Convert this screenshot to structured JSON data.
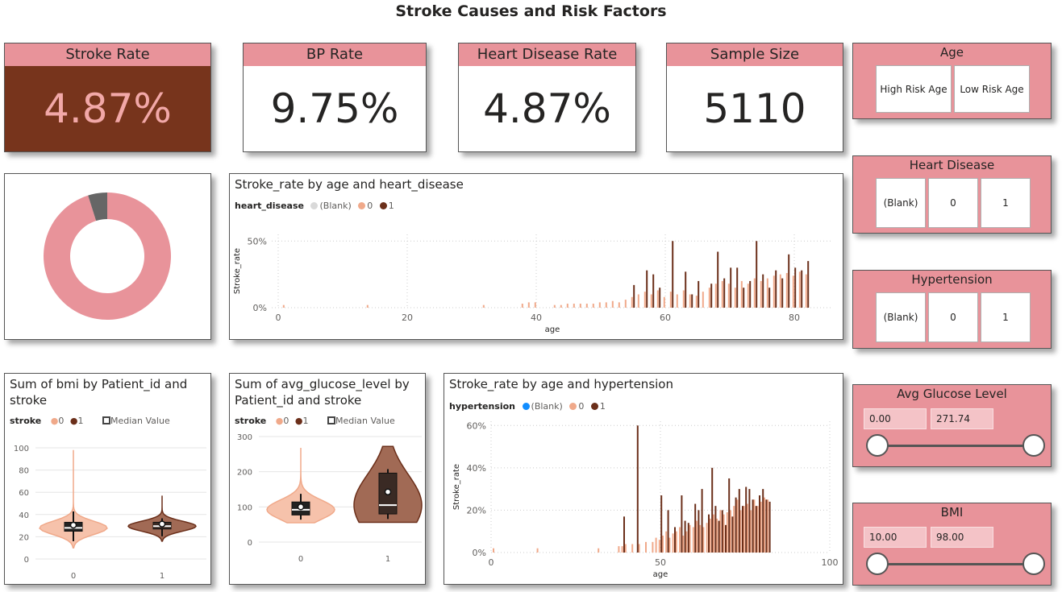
{
  "page_title": "Stroke Causes and Risk Factors",
  "kpis": {
    "stroke_rate": {
      "label": "Stroke Rate",
      "value": "4.87%"
    },
    "bp_rate": {
      "label": "BP Rate",
      "value": "9.75%"
    },
    "heart_disease_rate": {
      "label": "Heart Disease Rate",
      "value": "4.87%"
    },
    "sample_size": {
      "label": "Sample Size",
      "value": "5110"
    }
  },
  "slicers": {
    "age": {
      "title": "Age",
      "options": [
        "High Risk Age",
        "Low Risk Age"
      ]
    },
    "heart_disease": {
      "title": "Heart Disease",
      "options": [
        "(Blank)",
        "0",
        "1"
      ]
    },
    "hypertension": {
      "title": "Hypertension",
      "options": [
        "(Blank)",
        "0",
        "1"
      ]
    },
    "glucose": {
      "title": "Avg Glucose Level",
      "min": "0.00",
      "max": "271.74"
    },
    "bmi": {
      "title": "BMI",
      "min": "10.00",
      "max": "98.00"
    }
  },
  "colors": {
    "accent": "#e8939a",
    "kpi_dark": "#77341c",
    "kpi_dark_text": "#f2a8a8",
    "series0": "#f0a98a",
    "series1": "#6b2f1a",
    "blank_gray": "#d9d9d9",
    "blank_blue": "#118dff",
    "donut_gray": "#666666"
  },
  "chart_data": [
    {
      "type": "pie",
      "variant": "donut",
      "values": [
        95.13,
        4.87
      ]
    },
    {
      "type": "bar",
      "title": "Stroke_rate by age and heart_disease",
      "legend_title": "heart_disease",
      "legend": [
        "(Blank)",
        "0",
        "1"
      ],
      "xlabel": "age",
      "ylabel": "Stroke_rate",
      "xlim": [
        -1,
        86
      ],
      "ylim": [
        0,
        0.55
      ],
      "xticks": [
        "0",
        "20",
        "40",
        "60",
        "80"
      ],
      "yticks": [
        "0%",
        "50%"
      ],
      "series": [
        {
          "name": "0",
          "x": [
            1,
            14,
            32,
            38,
            39,
            40,
            43,
            44,
            45,
            46,
            47,
            48,
            49,
            50,
            51,
            52,
            53,
            54,
            55,
            56,
            57,
            58,
            59,
            60,
            61,
            62,
            63,
            64,
            65,
            66,
            67,
            68,
            69,
            70,
            71,
            72,
            73,
            74,
            75,
            76,
            77,
            78,
            79,
            80,
            81,
            82
          ],
          "y": [
            0.02,
            0.02,
            0.02,
            0.03,
            0.04,
            0.04,
            0.02,
            0.02,
            0.03,
            0.03,
            0.03,
            0.03,
            0.03,
            0.04,
            0.04,
            0.05,
            0.04,
            0.06,
            0.08,
            0.1,
            0.12,
            0.1,
            0.13,
            0.08,
            0.12,
            0.1,
            0.13,
            0.1,
            0.09,
            0.12,
            0.15,
            0.18,
            0.2,
            0.18,
            0.15,
            0.2,
            0.18,
            0.22,
            0.2,
            0.22,
            0.24,
            0.25,
            0.26,
            0.24,
            0.27,
            0.25
          ]
        },
        {
          "name": "1",
          "x": [
            55,
            57,
            58,
            59,
            61,
            63,
            64,
            65,
            67,
            68,
            69,
            70,
            71,
            72,
            73,
            74,
            75,
            76,
            77,
            78,
            79,
            80,
            81,
            82
          ],
          "y": [
            0.17,
            0.28,
            0.25,
            0.15,
            0.5,
            0.27,
            0.1,
            0.2,
            0.18,
            0.42,
            0.22,
            0.3,
            0.3,
            0.15,
            0.2,
            0.5,
            0.25,
            0.15,
            0.28,
            0.22,
            0.4,
            0.3,
            0.28,
            0.35
          ]
        }
      ]
    },
    {
      "type": "violin",
      "title": "Sum of bmi by Patient_id and stroke",
      "legend_title": "stroke",
      "legend": [
        "0",
        "1"
      ],
      "legend_extra": "Median Value",
      "categories": [
        "0",
        "1"
      ],
      "ylim": [
        0,
        100
      ],
      "yticks": [
        "0",
        "20",
        "40",
        "60",
        "80",
        "100"
      ],
      "stats": [
        {
          "name": "0",
          "min": 10,
          "q1": 25,
          "median": 28,
          "q3": 33,
          "max": 98
        },
        {
          "name": "1",
          "min": 16,
          "q1": 27,
          "median": 29.5,
          "q3": 33,
          "max": 57
        }
      ]
    },
    {
      "type": "violin",
      "title": "Sum of avg_glucose_level by Patient_id and stroke",
      "legend_title": "stroke",
      "legend": [
        "0",
        "1"
      ],
      "legend_extra": "Median Value",
      "categories": [
        "0",
        "1"
      ],
      "ylim": [
        0,
        300
      ],
      "yticks": [
        "0",
        "100",
        "200",
        "300"
      ],
      "stats": [
        {
          "name": "0",
          "min": 55,
          "q1": 77,
          "median": 92,
          "q3": 114,
          "max": 268
        },
        {
          "name": "1",
          "min": 56,
          "q1": 80,
          "median": 105,
          "q3": 196,
          "max": 272
        }
      ]
    },
    {
      "type": "bar",
      "title": "Stroke_rate by age and hypertension",
      "legend_title": "hypertension",
      "legend": [
        "(Blank)",
        "0",
        "1"
      ],
      "xlabel": "age",
      "ylabel": "Stroke_rate",
      "xlim": [
        0,
        100
      ],
      "ylim": [
        0,
        0.62
      ],
      "xticks": [
        "0",
        "50",
        "100"
      ],
      "yticks": [
        "0%",
        "20%",
        "40%",
        "60%"
      ],
      "series": [
        {
          "name": "0",
          "x": [
            1,
            14,
            32,
            38,
            39,
            40,
            42,
            44,
            46,
            48,
            49,
            50,
            51,
            52,
            53,
            54,
            55,
            56,
            57,
            58,
            59,
            60,
            61,
            62,
            63,
            64,
            65,
            66,
            67,
            68,
            69,
            70,
            71,
            72,
            73,
            74,
            75,
            76,
            77,
            78,
            79,
            80,
            81,
            82
          ],
          "y": [
            0.02,
            0.02,
            0.02,
            0.03,
            0.03,
            0.04,
            0.04,
            0.04,
            0.05,
            0.05,
            0.07,
            0.06,
            0.08,
            0.1,
            0.07,
            0.09,
            0.1,
            0.12,
            0.08,
            0.1,
            0.13,
            0.12,
            0.15,
            0.13,
            0.12,
            0.14,
            0.16,
            0.18,
            0.16,
            0.2,
            0.18,
            0.19,
            0.2,
            0.22,
            0.25,
            0.2,
            0.22,
            0.23,
            0.2,
            0.25,
            0.22,
            0.24,
            0.26,
            0.25
          ]
        },
        {
          "name": "1",
          "x": [
            39,
            43,
            50,
            52,
            54,
            56,
            57,
            58,
            60,
            61,
            62,
            64,
            65,
            66,
            67,
            68,
            69,
            70,
            71,
            72,
            73,
            74,
            75,
            76,
            77,
            78,
            79,
            80,
            81,
            82
          ],
          "y": [
            0.17,
            0.6,
            0.27,
            0.2,
            0.12,
            0.27,
            0.15,
            0.14,
            0.23,
            0.2,
            0.3,
            0.18,
            0.4,
            0.22,
            0.15,
            0.2,
            0.13,
            0.35,
            0.17,
            0.26,
            0.3,
            0.22,
            0.31,
            0.3,
            0.25,
            0.22,
            0.27,
            0.3,
            0.25,
            0.24
          ]
        }
      ]
    }
  ]
}
